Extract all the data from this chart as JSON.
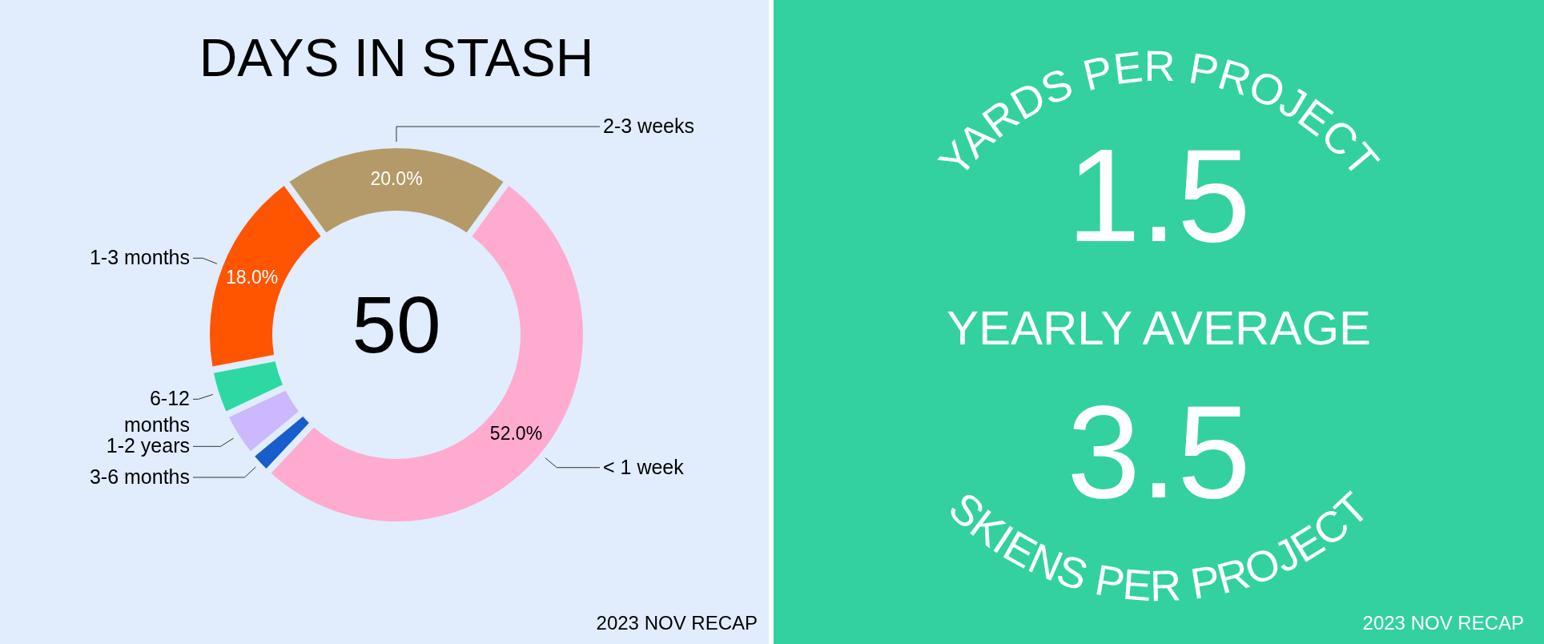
{
  "chart_data": [
    {
      "type": "donut",
      "title": "DAYS IN STASH",
      "categories": [
        "2-3 weeks",
        "< 1 week",
        "3-6 months",
        "1-2 years",
        "6-12 months",
        "1-3 months"
      ],
      "values": [
        20,
        52,
        2,
        4,
        4,
        18
      ],
      "colors": [
        "#b39a68",
        "#ffaacf",
        "#175dcc",
        "#cbb8fd",
        "#2ed8a3",
        "#ff5500"
      ],
      "value_labels": [
        "20.0%",
        "52.0%",
        null,
        null,
        null,
        "18.0%"
      ],
      "annotations": [
        "50",
        "2023 NOV RECAP"
      ]
    },
    {
      "type": "other",
      "title": "YEARLY AVERAGE",
      "categories": [
        "YARDS PER PROJECT",
        "SKIENS PER PROJECT"
      ],
      "values": [
        1.5,
        3.5
      ],
      "data_labels": true,
      "annotations": [
        "2023 NOV RECAP"
      ]
    }
  ]
}
